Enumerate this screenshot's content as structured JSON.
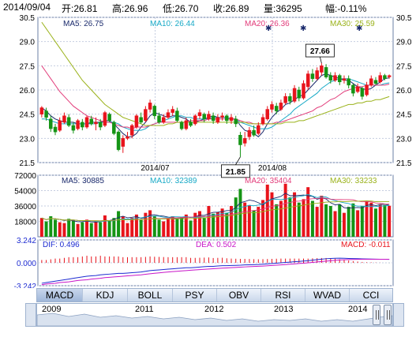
{
  "header": {
    "date": "2014/09/04",
    "open": "开:26.81",
    "high": "高:26.96",
    "low": "低:26.70",
    "close": "收:26.89",
    "volume": "量:36295",
    "change": "幅:-0.11%"
  },
  "indicators": {
    "ma5": "MA5: 26.75",
    "ma10": "MA10: 26.44",
    "ma20": "MA20: 26.36",
    "ma30": "MA30: 25.59",
    "vma5": "MA5: 30885",
    "vma10": "MA10: 32389",
    "vma20": "MA20: 35404",
    "vma30": "MA30: 33233",
    "dif": "DIF: 0.496",
    "dea": "DEA: 0.502",
    "macd": "MACD: -0.011"
  },
  "colors": {
    "up": "#e8141c",
    "down": "#159415",
    "ma5": "#1a2a6c",
    "ma10": "#17a9c6",
    "ma20": "#e23c7a",
    "ma30": "#9ab21a",
    "dif": "#1d2bd1",
    "dea": "#c815c8"
  },
  "chart_data": {
    "type": "candlestick",
    "x_labels": [
      "2014/07",
      "2014/08"
    ],
    "price_axis": {
      "ticks": [
        "30.5",
        "29.0",
        "27.5",
        "26.0",
        "24.5",
        "23.0",
        "21.5"
      ],
      "range": [
        21.5,
        30.5
      ]
    },
    "volume_axis": {
      "ticks": [
        "72000",
        "54000",
        "36000",
        "18000"
      ],
      "range": [
        0,
        72000
      ]
    },
    "macd_axis": {
      "ticks": [
        "3.242",
        "0.000",
        "-3.242"
      ],
      "range": [
        -3.242,
        3.242
      ]
    },
    "annotations": [
      {
        "label": "27.66",
        "index": 62,
        "value": 27.66
      },
      {
        "label": "21.85",
        "index": 44,
        "value": 21.85
      }
    ],
    "candles": [
      [
        24.5,
        24.9,
        24.3,
        25.0
      ],
      [
        24.7,
        24.3,
        24.1,
        24.9
      ],
      [
        24.2,
        23.6,
        23.4,
        24.4
      ],
      [
        23.7,
        23.4,
        23.2,
        23.9
      ],
      [
        23.5,
        24.1,
        23.4,
        24.3
      ],
      [
        24.0,
        24.4,
        23.9,
        24.6
      ],
      [
        24.3,
        23.8,
        23.7,
        24.5
      ],
      [
        23.8,
        23.5,
        23.3,
        24.0
      ],
      [
        23.6,
        24.1,
        23.5,
        24.2
      ],
      [
        24.0,
        23.7,
        23.5,
        24.2
      ],
      [
        23.7,
        24.3,
        23.6,
        24.4
      ],
      [
        24.2,
        23.9,
        23.8,
        24.4
      ],
      [
        23.9,
        24.0,
        23.5,
        24.3
      ],
      [
        24.0,
        23.7,
        23.5,
        24.2
      ],
      [
        23.8,
        24.6,
        23.7,
        24.7
      ],
      [
        24.5,
        24.1,
        24.0,
        24.6
      ],
      [
        24.0,
        23.3,
        23.2,
        24.1
      ],
      [
        23.4,
        22.3,
        22.2,
        23.5
      ],
      [
        22.5,
        23.0,
        22.1,
        23.2
      ],
      [
        23.0,
        23.1,
        22.9,
        23.4
      ],
      [
        23.2,
        23.8,
        23.0,
        23.9
      ],
      [
        23.7,
        24.4,
        23.6,
        24.5
      ],
      [
        24.3,
        24.0,
        23.9,
        24.6
      ],
      [
        24.1,
        24.8,
        24.0,
        25.0
      ],
      [
        24.8,
        25.2,
        24.6,
        25.4
      ],
      [
        25.0,
        24.4,
        24.2,
        25.1
      ],
      [
        24.4,
        24.0,
        23.9,
        24.6
      ],
      [
        24.0,
        24.3,
        23.9,
        24.5
      ],
      [
        24.3,
        24.6,
        24.2,
        24.8
      ],
      [
        24.6,
        24.8,
        24.4,
        25.0
      ],
      [
        24.7,
        24.1,
        24.0,
        24.9
      ],
      [
        24.0,
        23.6,
        23.5,
        24.1
      ],
      [
        23.6,
        24.1,
        23.5,
        24.3
      ],
      [
        24.0,
        23.8,
        23.7,
        24.2
      ],
      [
        23.9,
        24.4,
        23.8,
        24.5
      ],
      [
        24.4,
        24.6,
        24.2,
        24.8
      ],
      [
        24.5,
        24.2,
        24.0,
        24.6
      ],
      [
        24.2,
        24.5,
        24.1,
        24.7
      ],
      [
        24.4,
        24.1,
        23.9,
        24.6
      ],
      [
        24.0,
        24.3,
        23.9,
        24.5
      ],
      [
        24.3,
        24.4,
        24.1,
        24.6
      ],
      [
        24.4,
        24.1,
        23.9,
        24.5
      ],
      [
        24.1,
        24.3,
        23.9,
        24.5
      ],
      [
        24.2,
        23.9,
        23.7,
        24.4
      ],
      [
        23.2,
        22.6,
        21.85,
        23.4
      ],
      [
        22.7,
        23.0,
        22.5,
        23.4
      ],
      [
        23.1,
        23.5,
        22.9,
        23.7
      ],
      [
        23.5,
        23.2,
        23.1,
        23.8
      ],
      [
        23.3,
        23.8,
        23.2,
        24.0
      ],
      [
        23.9,
        24.3,
        23.8,
        24.5
      ],
      [
        24.2,
        24.8,
        24.1,
        25.0
      ],
      [
        24.8,
        25.1,
        24.6,
        25.3
      ],
      [
        25.0,
        24.7,
        24.5,
        25.2
      ],
      [
        24.8,
        25.2,
        24.7,
        25.4
      ],
      [
        25.2,
        25.6,
        25.1,
        25.8
      ],
      [
        25.6,
        25.3,
        25.1,
        25.8
      ],
      [
        25.3,
        26.1,
        25.2,
        26.3
      ],
      [
        26.0,
        25.5,
        25.3,
        26.2
      ],
      [
        25.5,
        26.4,
        25.4,
        26.6
      ],
      [
        26.2,
        27.0,
        26.0,
        27.2
      ],
      [
        27.0,
        26.7,
        26.5,
        27.3
      ],
      [
        26.7,
        27.2,
        26.6,
        27.4
      ],
      [
        27.1,
        27.5,
        26.9,
        27.66
      ],
      [
        27.4,
        26.8,
        26.7,
        27.6
      ],
      [
        26.9,
        26.6,
        26.4,
        27.1
      ],
      [
        26.6,
        26.9,
        26.5,
        27.1
      ],
      [
        26.9,
        26.5,
        26.3,
        27.0
      ],
      [
        26.6,
        26.7,
        26.4,
        26.9
      ],
      [
        26.7,
        26.3,
        26.1,
        26.9
      ],
      [
        26.3,
        25.8,
        25.6,
        26.4
      ],
      [
        25.9,
        26.2,
        25.8,
        26.4
      ],
      [
        26.1,
        25.6,
        25.4,
        26.2
      ],
      [
        25.7,
        26.3,
        25.6,
        26.5
      ],
      [
        26.3,
        26.7,
        26.2,
        26.9
      ],
      [
        26.6,
        26.4,
        26.3,
        26.8
      ],
      [
        26.5,
        26.9,
        26.4,
        27.1
      ],
      [
        26.9,
        26.7,
        26.6,
        27.0
      ],
      [
        26.81,
        26.89,
        26.7,
        26.96
      ]
    ],
    "volumes": [
      22000,
      18000,
      24000,
      20000,
      17000,
      16000,
      21000,
      19000,
      15000,
      17000,
      20000,
      16000,
      18000,
      17000,
      25000,
      19000,
      22000,
      30000,
      24000,
      16000,
      22000,
      26000,
      20000,
      28000,
      31000,
      24000,
      20000,
      18000,
      22000,
      24000,
      21000,
      23000,
      26000,
      19000,
      28000,
      30000,
      22000,
      36000,
      27000,
      29000,
      33000,
      28000,
      36000,
      46000,
      56000,
      40000,
      37000,
      31000,
      35000,
      43000,
      61000,
      52000,
      38000,
      42000,
      62000,
      46000,
      52000,
      40000,
      44000,
      58000,
      42000,
      35000,
      48000,
      38000,
      36000,
      30000,
      38000,
      28000,
      35000,
      39000,
      31000,
      36000,
      42000,
      40000,
      33000,
      38000,
      37000,
      36295
    ],
    "ma_series": {
      "MA5": [
        24.9,
        24.7,
        24.4,
        24.2,
        24.1,
        24.0,
        24.0,
        24.0,
        23.9,
        23.9,
        23.9,
        24.0,
        24.0,
        24.0,
        24.1,
        24.1,
        23.9,
        23.6,
        23.3,
        23.1,
        23.1,
        23.3,
        23.7,
        24.0,
        24.4,
        24.6,
        24.5,
        24.4,
        24.3,
        24.4,
        24.4,
        24.3,
        24.2,
        24.0,
        24.0,
        24.1,
        24.2,
        24.3,
        24.4,
        24.3,
        24.3,
        24.3,
        24.2,
        24.2,
        23.8,
        23.5,
        23.4,
        23.3,
        23.1,
        23.4,
        23.9,
        24.3,
        24.6,
        24.8,
        25.1,
        25.2,
        25.4,
        25.6,
        25.7,
        26.0,
        26.3,
        26.6,
        26.9,
        27.0,
        26.9,
        26.8,
        26.7,
        26.6,
        26.6,
        26.4,
        26.2,
        26.1,
        26.0,
        26.1,
        26.3,
        26.5,
        26.7,
        26.75
      ],
      "MA10": [
        24.2,
        24.2,
        24.1,
        24.0,
        23.9,
        23.9,
        23.9,
        23.9,
        23.9,
        23.9,
        23.9,
        23.9,
        23.9,
        24.0,
        24.0,
        24.0,
        24.0,
        23.9,
        23.7,
        23.6,
        23.5,
        23.5,
        23.5,
        23.6,
        23.8,
        23.9,
        24.0,
        24.1,
        24.2,
        24.3,
        24.4,
        24.4,
        24.3,
        24.3,
        24.2,
        24.2,
        24.2,
        24.2,
        24.3,
        24.3,
        24.3,
        24.3,
        24.2,
        24.2,
        24.0,
        23.9,
        23.8,
        23.7,
        23.6,
        23.6,
        23.6,
        23.7,
        23.9,
        24.1,
        24.3,
        24.5,
        24.8,
        25.0,
        25.2,
        25.4,
        25.6,
        25.8,
        26.1,
        26.3,
        26.5,
        26.6,
        26.7,
        26.7,
        26.7,
        26.6,
        26.5,
        26.4,
        26.3,
        26.3,
        26.3,
        26.3,
        26.4,
        26.44
      ],
      "MA20": [
        27.5,
        27.1,
        26.7,
        26.3,
        25.9,
        25.6,
        25.3,
        25.0,
        24.8,
        24.6,
        24.4,
        24.3,
        24.2,
        24.1,
        24.0,
        24.0,
        23.9,
        23.8,
        23.7,
        23.7,
        23.6,
        23.7,
        23.7,
        23.7,
        23.8,
        23.9,
        24.0,
        24.0,
        24.0,
        24.0,
        24.0,
        24.0,
        24.0,
        24.1,
        24.1,
        24.1,
        24.1,
        24.2,
        24.2,
        24.2,
        24.2,
        24.2,
        24.2,
        24.2,
        24.1,
        24.0,
        24.0,
        23.9,
        23.9,
        23.9,
        23.9,
        23.9,
        24.0,
        24.0,
        24.1,
        24.2,
        24.3,
        24.4,
        24.5,
        24.6,
        24.7,
        24.9,
        25.0,
        25.2,
        25.4,
        25.5,
        25.7,
        25.9,
        26.0,
        26.1,
        26.2,
        26.2,
        26.3,
        26.3,
        26.3,
        26.3,
        26.3,
        26.36
      ],
      "MA30": [
        30.2,
        29.8,
        29.4,
        29.0,
        28.6,
        28.2,
        27.8,
        27.4,
        27.0,
        26.6,
        26.3,
        26.0,
        25.7,
        25.4,
        25.1,
        24.9,
        24.7,
        24.5,
        24.3,
        24.2,
        24.1,
        24.0,
        23.9,
        23.8,
        23.8,
        23.8,
        23.8,
        23.8,
        23.9,
        23.9,
        24.0,
        24.0,
        24.0,
        24.0,
        24.0,
        24.0,
        24.0,
        24.0,
        24.0,
        24.0,
        24.0,
        24.0,
        24.0,
        24.0,
        24.0,
        24.0,
        23.9,
        23.9,
        23.9,
        23.9,
        23.9,
        23.9,
        23.9,
        23.9,
        24.0,
        24.0,
        24.0,
        24.1,
        24.1,
        24.2,
        24.3,
        24.4,
        24.5,
        24.6,
        24.7,
        24.8,
        24.9,
        25.0,
        25.1,
        25.1,
        25.2,
        25.2,
        25.3,
        25.3,
        25.4,
        25.4,
        25.5,
        25.59
      ]
    },
    "macd_series": {
      "DIF": [
        -2.9,
        -2.8,
        -2.7,
        -2.6,
        -2.5,
        -2.4,
        -2.3,
        -2.2,
        -2.1,
        -2.0,
        -1.9,
        -1.85,
        -1.8,
        -1.7,
        -1.65,
        -1.6,
        -1.55,
        -1.5,
        -1.5,
        -1.45,
        -1.4,
        -1.35,
        -1.3,
        -1.2,
        -1.1,
        -1.05,
        -1.0,
        -0.95,
        -0.9,
        -0.85,
        -0.8,
        -0.75,
        -0.7,
        -0.7,
        -0.65,
        -0.6,
        -0.55,
        -0.5,
        -0.5,
        -0.45,
        -0.4,
        -0.4,
        -0.38,
        -0.36,
        -0.34,
        -0.3,
        -0.28,
        -0.26,
        -0.24,
        -0.2,
        -0.15,
        -0.1,
        -0.05,
        0.0,
        0.05,
        0.1,
        0.15,
        0.2,
        0.25,
        0.3,
        0.38,
        0.45,
        0.52,
        0.58,
        0.62,
        0.64,
        0.65,
        0.64,
        0.62,
        0.6,
        0.58,
        0.56,
        0.54,
        0.53,
        0.52,
        0.51,
        0.5,
        0.496
      ],
      "DEA": [
        -3.1,
        -3.0,
        -2.95,
        -2.9,
        -2.8,
        -2.75,
        -2.7,
        -2.6,
        -2.5,
        -2.45,
        -2.4,
        -2.3,
        -2.25,
        -2.2,
        -2.1,
        -2.05,
        -2.0,
        -1.95,
        -1.9,
        -1.85,
        -1.8,
        -1.75,
        -1.7,
        -1.62,
        -1.55,
        -1.48,
        -1.42,
        -1.36,
        -1.3,
        -1.25,
        -1.2,
        -1.15,
        -1.1,
        -1.05,
        -1.0,
        -0.96,
        -0.92,
        -0.88,
        -0.84,
        -0.8,
        -0.76,
        -0.72,
        -0.68,
        -0.65,
        -0.62,
        -0.58,
        -0.55,
        -0.52,
        -0.49,
        -0.46,
        -0.42,
        -0.38,
        -0.34,
        -0.3,
        -0.25,
        -0.2,
        -0.15,
        -0.1,
        -0.05,
        0.0,
        0.06,
        0.12,
        0.18,
        0.24,
        0.3,
        0.35,
        0.4,
        0.43,
        0.46,
        0.48,
        0.49,
        0.5,
        0.5,
        0.5,
        0.5,
        0.5,
        0.502,
        0.502
      ]
    }
  },
  "tabs": [
    "MACD",
    "KDJ",
    "BOLL",
    "PSY",
    "OBV",
    "RSI",
    "WVAD",
    "CCI"
  ],
  "overview": {
    "years": [
      "2009",
      "2011",
      "2012",
      "2013",
      "2014"
    ]
  }
}
